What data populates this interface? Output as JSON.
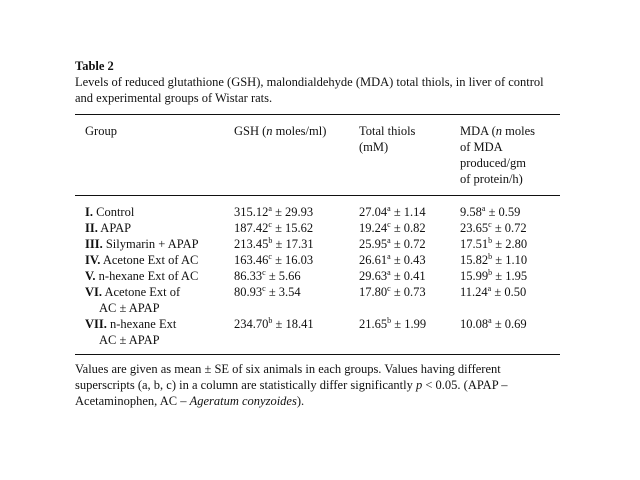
{
  "table_label": "Table 2",
  "caption": "Levels of reduced glutathione (GSH), malondialdehyde (MDA) total thiols, in liver of control and experimental groups of Wistar rats.",
  "headers": {
    "group": "Group",
    "gsh_pre": "GSH (",
    "gsh_italic": "n",
    "gsh_post": " moles/ml)",
    "thiols_line1": "Total thiols",
    "thiols_line2": "(mM)",
    "mda_pre": "MDA (",
    "mda_italic": "n",
    "mda_post": " moles",
    "mda_line2": "of MDA",
    "mda_line3": "produced/gm",
    "mda_line4": "of protein/h)"
  },
  "rows": [
    {
      "num": "I.",
      "name": "Control",
      "name2": "",
      "gsh": "315.12",
      "gsh_sup": "a",
      "gsh_se": " ± 29.93",
      "thiols": "27.04",
      "thiols_sup": "a",
      "thiols_se": " ± 1.14",
      "mda": "9.58",
      "mda_sup": "a",
      "mda_se": " ± 0.59"
    },
    {
      "num": "II.",
      "name": "APAP",
      "name2": "",
      "gsh": "187.42",
      "gsh_sup": "c",
      "gsh_se": " ± 15.62",
      "thiols": "19.24",
      "thiols_sup": "c",
      "thiols_se": " ± 0.82",
      "mda": "23.65",
      "mda_sup": "c",
      "mda_se": " ± 0.72"
    },
    {
      "num": "III.",
      "name": "Silymarin + APAP",
      "name2": "",
      "gsh": "213.45",
      "gsh_sup": "b",
      "gsh_se": " ± 17.31",
      "thiols": "25.95",
      "thiols_sup": "a",
      "thiols_se": " ± 0.72",
      "mda": "17.51",
      "mda_sup": "b",
      "mda_se": " ± 2.80"
    },
    {
      "num": "IV.",
      "name": "Acetone Ext of AC",
      "name2": "",
      "gsh": "163.46",
      "gsh_sup": "c",
      "gsh_se": " ± 16.03",
      "thiols": "26.61",
      "thiols_sup": "a",
      "thiols_se": " ± 0.43",
      "mda": "15.82",
      "mda_sup": "b",
      "mda_se": " ± 1.10"
    },
    {
      "num": "V.",
      "name": "n-hexane Ext of AC",
      "name2": "",
      "gsh": "86.33",
      "gsh_sup": "c",
      "gsh_se": " ± 5.66",
      "thiols": "29.63",
      "thiols_sup": "a",
      "thiols_se": " ± 0.41",
      "mda": "15.99",
      "mda_sup": "b",
      "mda_se": " ± 1.95"
    },
    {
      "num": "VI.",
      "name": "Acetone Ext of",
      "name2": "AC ± APAP",
      "gsh": "80.93",
      "gsh_sup": "c",
      "gsh_se": " ± 3.54",
      "thiols": "17.80",
      "thiols_sup": "c",
      "thiols_se": " ± 0.73",
      "mda": "11.24",
      "mda_sup": "a",
      "mda_se": " ± 0.50"
    },
    {
      "num": "VII.",
      "name": "n-hexane Ext",
      "name2": "AC ± APAP",
      "gsh": "234.70",
      "gsh_sup": "b",
      "gsh_se": " ± 18.41",
      "thiols": "21.65",
      "thiols_sup": "b",
      "thiols_se": " ± 1.99",
      "mda": "10.08",
      "mda_sup": "a",
      "mda_se": " ± 0.69"
    }
  ],
  "footnote": {
    "part1": "Values are given as mean ± SE of six animals in each groups. Values having different superscripts (a, b, c) in a column are statistically differ significantly ",
    "p_italic": "p",
    "part2": " < 0.05. (APAP – Acetaminophen, AC – ",
    "species_italic": "Ageratum conyzoides",
    "part3": ")."
  }
}
